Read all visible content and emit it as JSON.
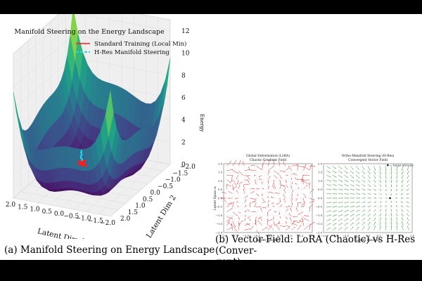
{
  "panel_a": {
    "caption": "(a) Manifold Steering on Energy Landscape"
  },
  "panel_b": {
    "caption_line1": "(b) Vector Field: LoRA (Chaotic) vs H-Res (Conver-",
    "caption_line2": "gent)"
  },
  "chart_data": [
    {
      "type": "surface3d",
      "title": "Manifold Steering on the Energy Landscape",
      "xlabel": "Latent Dim 1",
      "ylabel": "Latent Dim 2",
      "zlabel": "Energy",
      "xticks": [
        "2.0",
        "1.5",
        "1.0",
        "0.5",
        "0.0",
        "−0.5",
        "−1.0",
        "−1.5",
        "−2.0"
      ],
      "yticks": [
        "−2.0",
        "−1.5",
        "−1.0",
        "−0.5",
        "0.0",
        "0.5",
        "1.0",
        "1.5",
        "2.0"
      ],
      "zticks": [
        "0",
        "2",
        "4",
        "6",
        "8",
        "10",
        "12"
      ],
      "xlim": [
        -2,
        2
      ],
      "ylim": [
        -2,
        2
      ],
      "zlim": [
        0,
        12
      ],
      "colormap": "viridis",
      "legend_position": "top-right",
      "series": [
        {
          "name": "Standard Training (Local Min)",
          "style": "solid",
          "color": "#ff1a1a",
          "points": [
            [
              1.0,
              -1.0,
              0.0
            ]
          ]
        },
        {
          "name": "H-Res Manifold Steering",
          "style": "dashed",
          "color": "#2ad4e8",
          "points": [
            [
              0.2,
              0.4,
              2.4
            ],
            [
              0.4,
              0.1,
              2.4
            ],
            [
              0.6,
              -0.3,
              2.2
            ],
            [
              0.8,
              -0.6,
              1.6
            ],
            [
              1.0,
              -1.0,
              0.0
            ]
          ]
        }
      ]
    },
    {
      "type": "quiver",
      "title": "Global Deformation (LoRA)",
      "subtitle": "Chaotic Gradient Field",
      "xlabel": "Latent Space z₁",
      "ylabel": "Latent Space z₂",
      "xticks": [
        "−2.0",
        "−1.5",
        "−1.0",
        "−0.5",
        "0.0",
        "0.5",
        "1.0",
        "1.5",
        "2.0"
      ],
      "yticks": [
        "2.0",
        "1.5",
        "1.0",
        "0.5",
        "0.0",
        "−0.5",
        "−1.0",
        "−1.5",
        "−2.0"
      ],
      "xlim": [
        -2,
        2
      ],
      "ylim": [
        -2,
        2
      ],
      "color": "#e8322f",
      "grid": 15,
      "behavior": "chaotic"
    },
    {
      "type": "quiver",
      "title": "Ortho-Manifold Steering (H-Res)",
      "subtitle": "Convergent Vector Field",
      "xlabel": "Latent Space z₁",
      "ylabel": "",
      "xticks": [
        "−2.0",
        "−1.5",
        "−1.0",
        "−0.5",
        "0.0",
        "0.5",
        "1.0",
        "1.5",
        "2.0"
      ],
      "yticks": [
        "2.0",
        "1.5",
        "1.0",
        "0.5",
        "0.0",
        "−0.5",
        "−1.0",
        "−1.5",
        "−2.0"
      ],
      "xlim": [
        -2,
        2
      ],
      "ylim": [
        -2,
        2
      ],
      "color": "#2b9a2b",
      "grid": 15,
      "behavior": "convergent",
      "attractors": [
        [
          0.9,
          2.0
        ],
        [
          1.0,
          0.0
        ]
      ],
      "annotation": "Target Attractor"
    }
  ]
}
